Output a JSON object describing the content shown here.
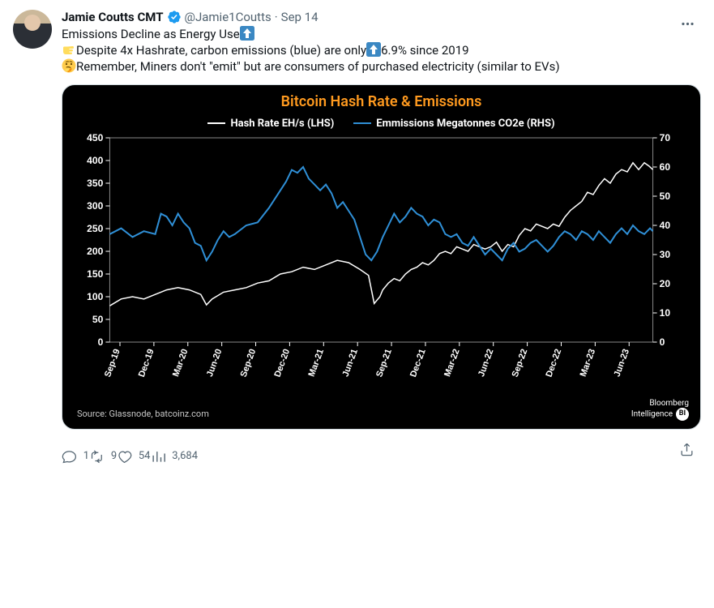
{
  "tweet": {
    "author_name": "Jamie Coutts CMT",
    "handle": "@Jamie1Coutts",
    "date": "Sep 14",
    "verified_color": "#1d9bf0",
    "text_parts": [
      {
        "t": "text",
        "v": "Emissions Decline as Energy Use"
      },
      {
        "t": "emoji",
        "v": "⬆️"
      },
      {
        "t": "br"
      },
      {
        "t": "emoji",
        "v": "👉"
      },
      {
        "t": "text",
        "v": "Despite 4x Hashrate, carbon emissions (blue) are only"
      },
      {
        "t": "emoji",
        "v": "⬆️"
      },
      {
        "t": "text",
        "v": "6.9% since 2019"
      },
      {
        "t": "br"
      },
      {
        "t": "emoji",
        "v": "🤔"
      },
      {
        "t": "text",
        "v": "Remember, Miners don't \"emit\" but are consumers of purchased electricity (similar to EVs)"
      }
    ]
  },
  "chart": {
    "title": "Bitcoin Hash Rate & Emissions",
    "title_color": "#ff9a1f",
    "background": "#000000",
    "axis_color": "#ffffff",
    "legend": [
      {
        "label": "Hash Rate EH/s (LHS)",
        "color": "#ffffff"
      },
      {
        "label": "Emmissions Megatonnes CO2e (RHS)",
        "color": "#2f8fd6"
      }
    ],
    "left_axis": {
      "min": 0,
      "max": 450,
      "step": 50
    },
    "right_axis": {
      "min": 0,
      "max": 70,
      "step": 10
    },
    "x_labels": [
      "Sep-19",
      "Dec-19",
      "Mar-20",
      "Jun-20",
      "Sep-20",
      "Dec-20",
      "Mar-21",
      "Jun-21",
      "Sep-21",
      "Dec-21",
      "Mar-22",
      "Jun-22",
      "Sep-22",
      "Dec-22",
      "Mar-23",
      "Jun-23"
    ],
    "series": {
      "hashrate": {
        "color": "#ffffff",
        "width": 1.5,
        "points": [
          [
            0,
            80
          ],
          [
            2,
            95
          ],
          [
            4,
            100
          ],
          [
            6,
            95
          ],
          [
            8,
            105
          ],
          [
            10,
            115
          ],
          [
            12,
            120
          ],
          [
            14,
            115
          ],
          [
            16,
            105
          ],
          [
            17,
            82
          ],
          [
            18,
            95
          ],
          [
            20,
            110
          ],
          [
            22,
            115
          ],
          [
            24,
            120
          ],
          [
            26,
            130
          ],
          [
            28,
            135
          ],
          [
            30,
            150
          ],
          [
            32,
            155
          ],
          [
            34,
            165
          ],
          [
            36,
            160
          ],
          [
            38,
            170
          ],
          [
            40,
            180
          ],
          [
            42,
            175
          ],
          [
            44,
            160
          ],
          [
            45.5,
            147
          ],
          [
            46.5,
            85
          ],
          [
            47.5,
            100
          ],
          [
            48,
            115
          ],
          [
            49,
            130
          ],
          [
            50,
            140
          ],
          [
            51,
            135
          ],
          [
            52,
            150
          ],
          [
            53,
            160
          ],
          [
            54,
            165
          ],
          [
            55,
            175
          ],
          [
            56,
            170
          ],
          [
            57,
            180
          ],
          [
            58,
            195
          ],
          [
            59,
            200
          ],
          [
            60,
            195
          ],
          [
            61,
            210
          ],
          [
            62,
            205
          ],
          [
            63,
            200
          ],
          [
            64,
            215
          ],
          [
            65,
            210
          ],
          [
            66,
            205
          ],
          [
            67,
            210
          ],
          [
            68,
            220
          ],
          [
            69,
            200
          ],
          [
            70,
            215
          ],
          [
            71,
            210
          ],
          [
            72,
            235
          ],
          [
            73,
            250
          ],
          [
            74,
            245
          ],
          [
            75,
            260
          ],
          [
            76,
            255
          ],
          [
            77,
            250
          ],
          [
            78,
            260
          ],
          [
            79,
            255
          ],
          [
            80,
            275
          ],
          [
            81,
            290
          ],
          [
            82,
            300
          ],
          [
            83,
            310
          ],
          [
            84,
            330
          ],
          [
            85,
            325
          ],
          [
            86,
            345
          ],
          [
            87,
            360
          ],
          [
            88,
            350
          ],
          [
            89,
            370
          ],
          [
            90,
            380
          ],
          [
            91,
            375
          ],
          [
            92,
            395
          ],
          [
            93,
            380
          ],
          [
            94,
            395
          ],
          [
            94.8,
            388
          ],
          [
            95.5,
            380
          ]
        ]
      },
      "emissions": {
        "color": "#2f8fd6",
        "width": 2,
        "points": [
          [
            0,
            37
          ],
          [
            2,
            39
          ],
          [
            4,
            36
          ],
          [
            6,
            38
          ],
          [
            8,
            37
          ],
          [
            9,
            44
          ],
          [
            10,
            43
          ],
          [
            11,
            40
          ],
          [
            12,
            44
          ],
          [
            13,
            41
          ],
          [
            14,
            39
          ],
          [
            15,
            34
          ],
          [
            16,
            33
          ],
          [
            17,
            28
          ],
          [
            18,
            31
          ],
          [
            19,
            35
          ],
          [
            20,
            38
          ],
          [
            21,
            36
          ],
          [
            22,
            37
          ],
          [
            24,
            40
          ],
          [
            26,
            41
          ],
          [
            28,
            46
          ],
          [
            30,
            52
          ],
          [
            31,
            55
          ],
          [
            32,
            59
          ],
          [
            33,
            58
          ],
          [
            34,
            60
          ],
          [
            35,
            56
          ],
          [
            36,
            54
          ],
          [
            37,
            52
          ],
          [
            38,
            54
          ],
          [
            39,
            51
          ],
          [
            40,
            46
          ],
          [
            41,
            48
          ],
          [
            42,
            45
          ],
          [
            43,
            42
          ],
          [
            44,
            36
          ],
          [
            45,
            30
          ],
          [
            46,
            28
          ],
          [
            47,
            31
          ],
          [
            48,
            36
          ],
          [
            49,
            40
          ],
          [
            50,
            44
          ],
          [
            51,
            41
          ],
          [
            52,
            43
          ],
          [
            53,
            46
          ],
          [
            54,
            44
          ],
          [
            55,
            43
          ],
          [
            56,
            40
          ],
          [
            57,
            42
          ],
          [
            58,
            41
          ],
          [
            59,
            37
          ],
          [
            60,
            36
          ],
          [
            61,
            37
          ],
          [
            62,
            34
          ],
          [
            63,
            33
          ],
          [
            64,
            36
          ],
          [
            65,
            33
          ],
          [
            66,
            30
          ],
          [
            67,
            32
          ],
          [
            68,
            30
          ],
          [
            69,
            28
          ],
          [
            70,
            32
          ],
          [
            71,
            34
          ],
          [
            72,
            31
          ],
          [
            73,
            32
          ],
          [
            74,
            34
          ],
          [
            75,
            35
          ],
          [
            76,
            33
          ],
          [
            77,
            31
          ],
          [
            78,
            33
          ],
          [
            79,
            36
          ],
          [
            80,
            38
          ],
          [
            81,
            37
          ],
          [
            82,
            35
          ],
          [
            83,
            38
          ],
          [
            84,
            37
          ],
          [
            85,
            35
          ],
          [
            86,
            38
          ],
          [
            87,
            36
          ],
          [
            88,
            34
          ],
          [
            89,
            37
          ],
          [
            90,
            39
          ],
          [
            91,
            37
          ],
          [
            92,
            40
          ],
          [
            93,
            38
          ],
          [
            94,
            37
          ],
          [
            95,
            39
          ],
          [
            95.5,
            38
          ]
        ]
      }
    },
    "source": "Source: Glassnode, batcoinz.com",
    "brand": "Bloomberg\nIntelligence"
  },
  "metrics": {
    "replies": "1",
    "retweets": "9",
    "likes": "54",
    "views": "3,684"
  },
  "colors": {
    "muted": "#536471"
  }
}
